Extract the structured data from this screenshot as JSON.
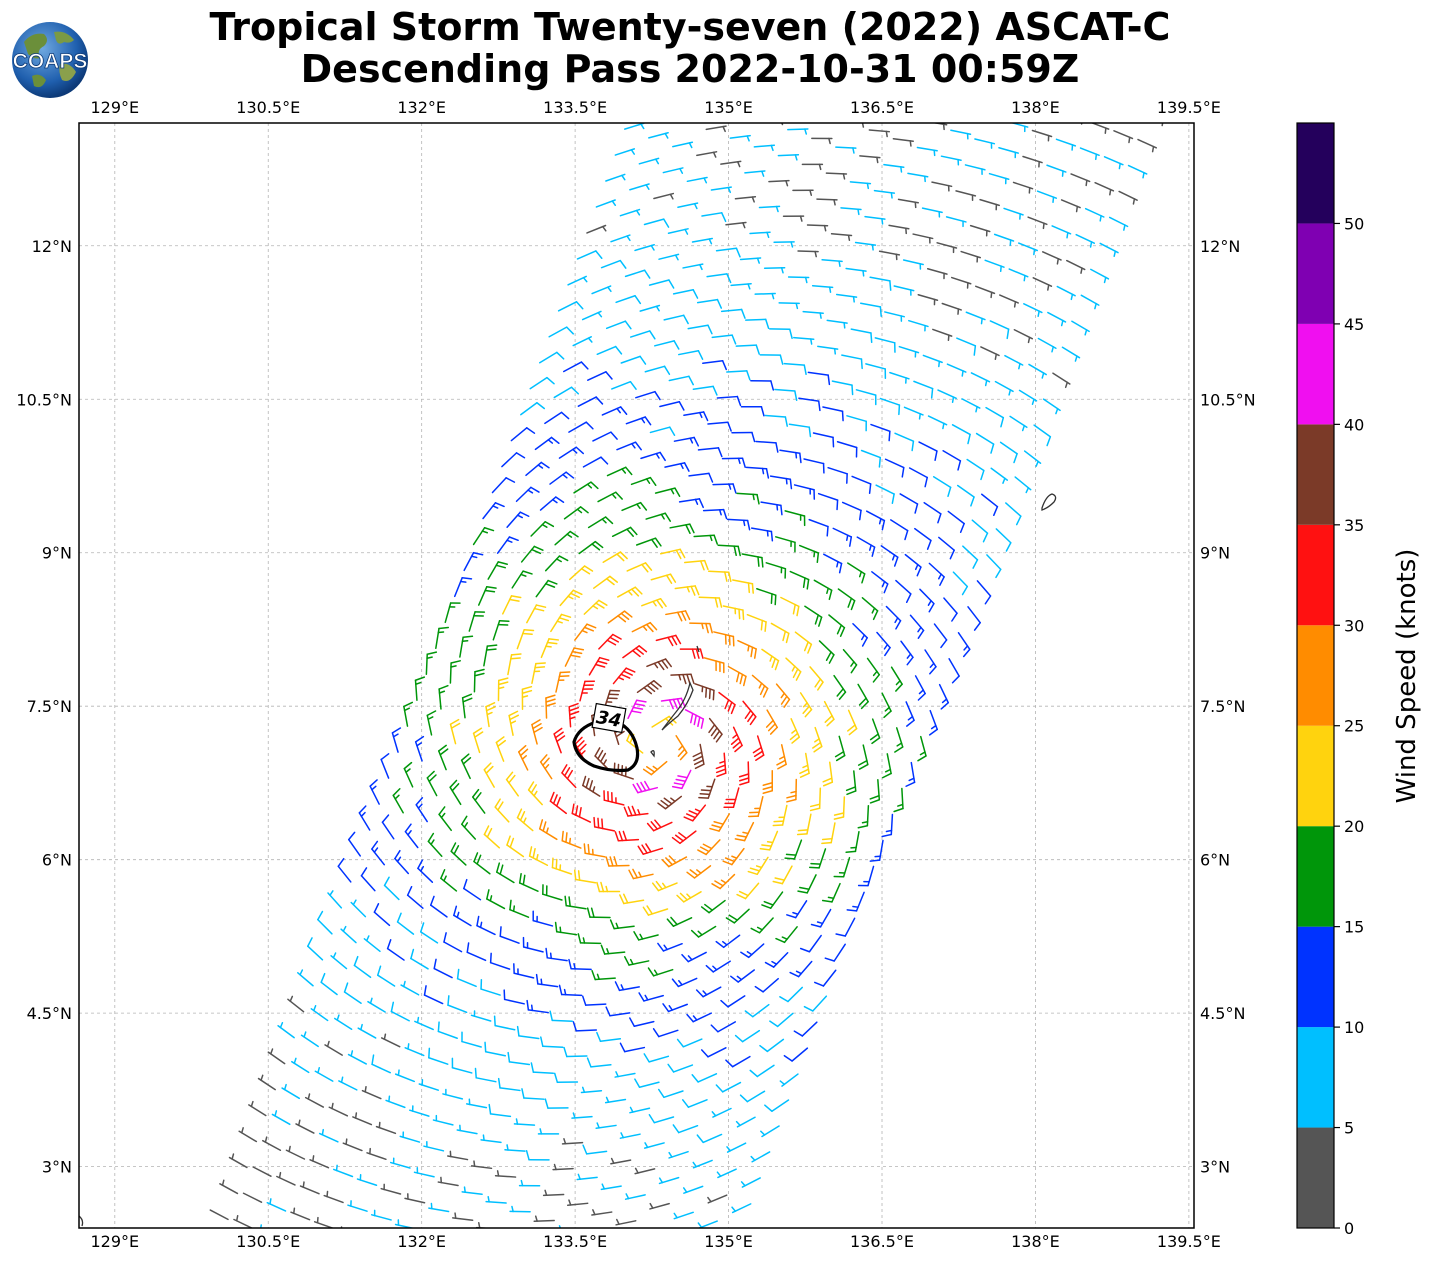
{
  "title": {
    "line1": "Tropical Storm Twenty-seven (2022) ASCAT-C",
    "line2": "Descending Pass 2022-10-31 00:59Z"
  },
  "logo": {
    "text": "COAPS"
  },
  "map": {
    "lon_range": [
      128.65,
      139.55
    ],
    "lat_range": [
      2.4,
      13.2
    ],
    "lon_ticks": [
      "129°E",
      "130.5°E",
      "132°E",
      "133.5°E",
      "135°E",
      "136.5°E",
      "138°E",
      "139.5°E"
    ],
    "lat_ticks": [
      "12°N",
      "10.5°N",
      "9°N",
      "7.5°N",
      "6°N",
      "4.5°N",
      "3°N"
    ],
    "gridlines": true,
    "center": {
      "lon": 134.3,
      "lat": 7.15
    },
    "radius_34kt_label": "34",
    "swath": {
      "direction": "NNE",
      "width_deg": 4.8
    }
  },
  "chart_data": {
    "type": "wind barbs",
    "unit": "knots",
    "colorbar_label": "Wind Speed (knots)",
    "colorbar_ticks": [
      "0",
      "5",
      "10",
      "15",
      "20",
      "25",
      "30",
      "35",
      "40",
      "45",
      "50"
    ],
    "bins": [
      {
        "min": 0,
        "max": 5,
        "color": "#555555"
      },
      {
        "min": 5,
        "max": 10,
        "color": "#00bfff"
      },
      {
        "min": 10,
        "max": 15,
        "color": "#0033ff"
      },
      {
        "min": 15,
        "max": 20,
        "color": "#00960a"
      },
      {
        "min": 20,
        "max": 25,
        "color": "#ffd30e"
      },
      {
        "min": 25,
        "max": 30,
        "color": "#ff8c00"
      },
      {
        "min": 30,
        "max": 35,
        "color": "#ff1111"
      },
      {
        "min": 35,
        "max": 40,
        "color": "#7b3a28"
      },
      {
        "min": 40,
        "max": 45,
        "color": "#f00ff0"
      },
      {
        "min": 45,
        "max": 50,
        "color": "#7f00b2"
      },
      {
        "min": 50,
        "max": 55,
        "color": "#24005c"
      }
    ],
    "storm_peak_kt": 38
  }
}
